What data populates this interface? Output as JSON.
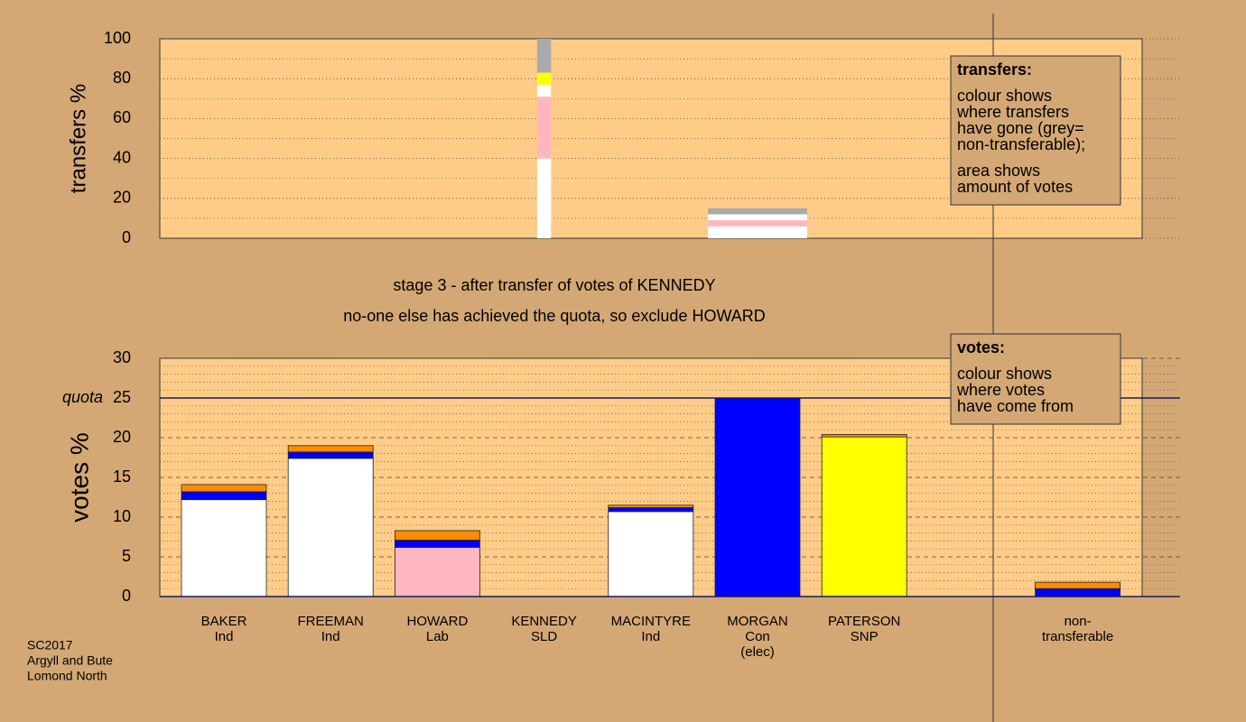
{
  "chart_data": [
    {
      "type": "bar",
      "ylabel": "transfers %",
      "ylim": [
        0,
        100
      ],
      "yticks": [
        0,
        20,
        40,
        60,
        80,
        100
      ],
      "minor_yticks": [
        10,
        30,
        50,
        70,
        90
      ],
      "widths": [
        null,
        null,
        null,
        0.13,
        null,
        0.93,
        null,
        null,
        null
      ],
      "series": [
        {
          "color": "#ffffff",
          "values": [
            0,
            0,
            0,
            40,
            0,
            6,
            0,
            null,
            0
          ]
        },
        {
          "color": "#ffb6c1",
          "values": [
            0,
            0,
            0,
            31,
            0,
            3,
            0,
            null,
            0
          ]
        },
        {
          "color": "#ffffff",
          "values": [
            0,
            0,
            0,
            6,
            0,
            3,
            0,
            null,
            0
          ]
        },
        {
          "color": "#ffff00",
          "values": [
            0,
            0,
            0,
            6,
            0,
            0,
            0,
            null,
            0
          ]
        },
        {
          "color": "#aaaaaa",
          "values": [
            0,
            0,
            0,
            17,
            0,
            3,
            0,
            null,
            0
          ]
        }
      ],
      "legend_title": "transfers:",
      "legend_lines": [
        [
          "colour shows",
          "where transfers",
          "have gone (grey=",
          "non-transferable);"
        ],
        [
          "area shows",
          "amount of votes"
        ]
      ]
    },
    {
      "type": "bar",
      "ylabel": "votes %",
      "ylim": [
        0,
        30
      ],
      "yticks": [
        0,
        5,
        10,
        15,
        20,
        25,
        30
      ],
      "minor_yticks": [
        1,
        2,
        3,
        4,
        6,
        7,
        8,
        9,
        11,
        12,
        13,
        14,
        16,
        17,
        18,
        19,
        21,
        22,
        23,
        24,
        26,
        27,
        28,
        29
      ],
      "quota": 25,
      "quota_label": "quota",
      "categories": [
        [
          "BAKER",
          "Ind"
        ],
        [
          "FREEMAN",
          "Ind"
        ],
        [
          "HOWARD",
          "Lab"
        ],
        [
          "KENNEDY",
          "SLD"
        ],
        [
          "MACINTYRE",
          "Ind"
        ],
        [
          "MORGAN",
          "Con",
          "(elec)"
        ],
        [
          "PATERSON",
          "SNP"
        ],
        null,
        [
          "non-",
          "transferable"
        ]
      ],
      "series": [
        {
          "color": "#ffffff",
          "values": [
            12.2,
            17.4,
            0,
            0,
            10.7,
            0,
            0,
            null,
            0
          ]
        },
        {
          "color": "#ffb6c1",
          "values": [
            0,
            0,
            6.2,
            0,
            0,
            0,
            0,
            null,
            0
          ]
        },
        {
          "color": "#0000ff",
          "values": [
            1.0,
            0.8,
            0.9,
            0,
            0.5,
            25,
            0,
            null,
            1.0
          ]
        },
        {
          "color": "#ffff00",
          "values": [
            0,
            0,
            0,
            0,
            0,
            0,
            20.1,
            null,
            0
          ]
        },
        {
          "color": "#ff8c00",
          "values": [
            0.9,
            0.8,
            1.2,
            0,
            0.3,
            0,
            0.3,
            null,
            0.8
          ]
        }
      ],
      "legend_title": "votes:",
      "legend_lines": [
        [
          "colour shows",
          "where votes",
          "have come from"
        ]
      ]
    }
  ],
  "subtitle_lines": [
    "stage 3 - after transfer of votes of KENNEDY",
    "no-one else has achieved the quota, so exclude HOWARD"
  ],
  "footer": [
    "SC2017",
    "Argyll and Bute",
    "Lomond North"
  ]
}
